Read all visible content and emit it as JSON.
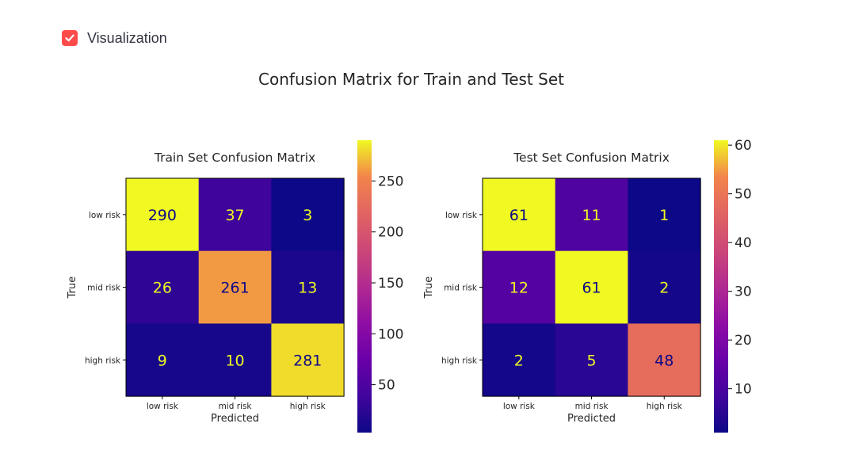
{
  "toggle": {
    "label": "Visualization",
    "checked": true,
    "accent": "#ff4b4b",
    "icon": "check-icon"
  },
  "figure": {
    "suptitle": "Confusion Matrix for Train and Test Set"
  },
  "chart_data": [
    {
      "type": "heatmap",
      "title": "Train Set Confusion Matrix",
      "xlabel": "Predicted",
      "ylabel": "True",
      "x_categories": [
        "low risk",
        "mid risk",
        "high risk"
      ],
      "y_categories": [
        "low risk",
        "mid risk",
        "high risk"
      ],
      "values": [
        [
          290,
          37,
          3
        ],
        [
          26,
          261,
          13
        ],
        [
          9,
          10,
          281
        ]
      ],
      "colormap": "plasma",
      "colorbar": {
        "range": [
          3,
          290
        ],
        "ticks": [
          50,
          100,
          150,
          200,
          250
        ]
      },
      "grid": false
    },
    {
      "type": "heatmap",
      "title": "Test Set Confusion Matrix",
      "xlabel": "Predicted",
      "ylabel": "True",
      "x_categories": [
        "low risk",
        "mid risk",
        "high risk"
      ],
      "y_categories": [
        "low risk",
        "mid risk",
        "high risk"
      ],
      "values": [
        [
          61,
          11,
          1
        ],
        [
          12,
          61,
          2
        ],
        [
          2,
          5,
          48
        ]
      ],
      "colormap": "plasma",
      "colorbar": {
        "range": [
          1,
          61
        ],
        "ticks": [
          10,
          20,
          30,
          40,
          50,
          60
        ]
      },
      "grid": false
    }
  ]
}
